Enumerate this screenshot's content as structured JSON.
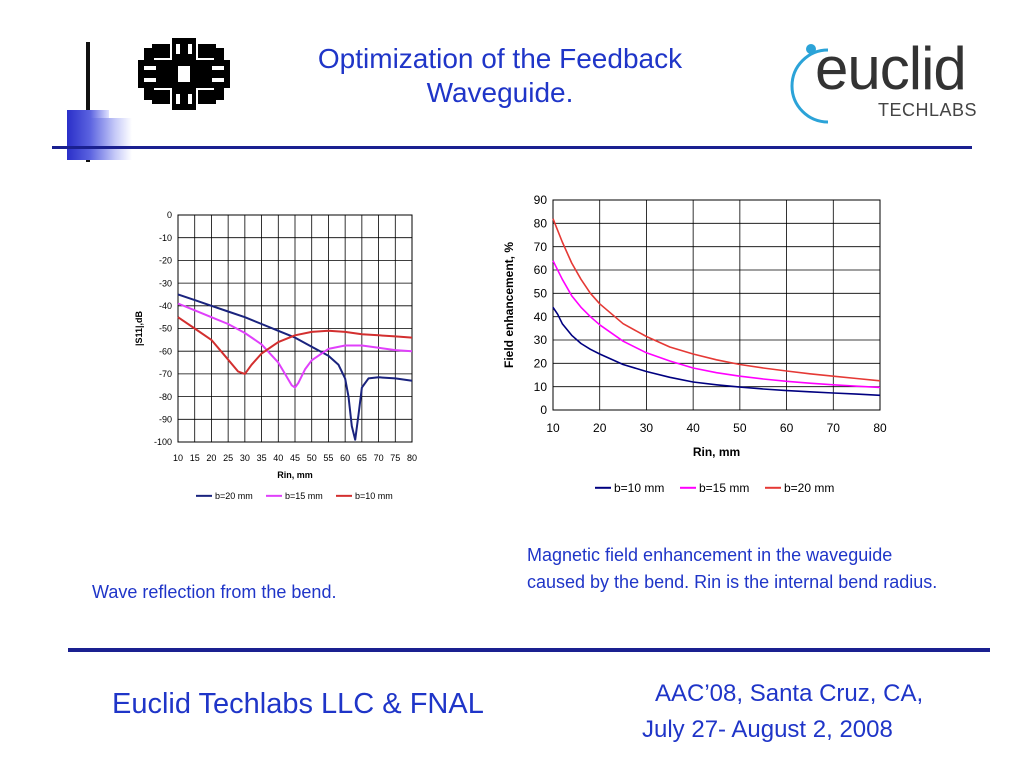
{
  "slide": {
    "title_line1": "Optimization of the Feedback",
    "title_line2": "Waveguide.",
    "logo_right_word": "euclid",
    "logo_right_sub": "TECHLABS",
    "caption_left": "Wave reflection from the bend.",
    "caption_right": "Magnetic field enhancement in the waveguide caused by the bend.  Rin is the internal bend radius.",
    "footer_left": "Euclid Techlabs LLC & FNAL",
    "footer_right_line1": "AAC’08, Santa Cruz, CA,",
    "footer_right_line2": "July 27- August 2, 2008"
  },
  "chart_data": [
    {
      "type": "line",
      "title": "",
      "xlabel": "Rin, mm",
      "ylabel": "|S11|,dB",
      "xlim": [
        10,
        80
      ],
      "ylim": [
        -100,
        0
      ],
      "xticks": [
        10,
        15,
        20,
        25,
        30,
        35,
        40,
        45,
        50,
        55,
        60,
        65,
        70,
        75,
        80
      ],
      "yticks": [
        0,
        -10,
        -20,
        -30,
        -40,
        -50,
        -60,
        -70,
        -80,
        -90,
        -100
      ],
      "grid": true,
      "legend": "bottom",
      "series": [
        {
          "name": "b=20 mm",
          "color": "#1a237e",
          "x": [
            10,
            15,
            20,
            25,
            30,
            35,
            40,
            45,
            50,
            55,
            58,
            60,
            61,
            62,
            63,
            64,
            65,
            67,
            70,
            75,
            80
          ],
          "y": [
            -35,
            -37.5,
            -40,
            -42.5,
            -45,
            -48,
            -51,
            -54,
            -58,
            -62,
            -66,
            -72,
            -80,
            -93,
            -99,
            -88,
            -76,
            -72,
            -71.5,
            -72,
            -73
          ]
        },
        {
          "name": "b=15 mm",
          "color": "#e040fb",
          "x": [
            10,
            15,
            20,
            25,
            30,
            35,
            40,
            42,
            44,
            45,
            46,
            48,
            50,
            55,
            60,
            65,
            70,
            75,
            80
          ],
          "y": [
            -39,
            -42,
            -45,
            -48,
            -52,
            -57,
            -65,
            -70,
            -75,
            -76,
            -74,
            -68,
            -64,
            -59,
            -57.5,
            -57.5,
            -58.5,
            -59.5,
            -60
          ]
        },
        {
          "name": "b=10 mm",
          "color": "#d32f2f",
          "x": [
            10,
            15,
            20,
            24,
            28,
            30,
            32,
            35,
            40,
            45,
            50,
            55,
            60,
            65,
            70,
            75,
            80
          ],
          "y": [
            -45,
            -50,
            -55,
            -62,
            -69,
            -70,
            -66,
            -61,
            -56,
            -53,
            -51.5,
            -51,
            -51.5,
            -52.5,
            -53,
            -53.5,
            -54
          ]
        }
      ]
    },
    {
      "type": "line",
      "title": "",
      "xlabel": "Rin, mm",
      "ylabel": "Field enhancement, %",
      "xlim": [
        10,
        80
      ],
      "ylim": [
        0,
        90
      ],
      "xticks": [
        10,
        20,
        30,
        40,
        50,
        60,
        70,
        80
      ],
      "yticks": [
        0,
        10,
        20,
        30,
        40,
        50,
        60,
        70,
        80,
        90
      ],
      "grid": true,
      "legend": "bottom",
      "series": [
        {
          "name": "b=10 mm",
          "color": "#000080",
          "x": [
            10,
            11,
            12,
            14,
            16,
            18,
            20,
            25,
            30,
            35,
            40,
            45,
            50,
            55,
            60,
            65,
            70,
            75,
            80
          ],
          "y": [
            44,
            41,
            37,
            32,
            28.5,
            26,
            24,
            19.5,
            16.5,
            14,
            12,
            10.8,
            9.8,
            9,
            8.3,
            7.8,
            7.3,
            6.8,
            6.3
          ]
        },
        {
          "name": "b=15 mm",
          "color": "#ff00ff",
          "x": [
            10,
            12,
            14,
            16,
            18,
            20,
            25,
            30,
            35,
            40,
            45,
            50,
            55,
            60,
            65,
            70,
            75,
            80
          ],
          "y": [
            64,
            56,
            49,
            44,
            40,
            36.5,
            29.5,
            24.5,
            21,
            18,
            16,
            14.5,
            13.3,
            12.3,
            11.5,
            10.8,
            10.2,
            9.7
          ]
        },
        {
          "name": "b=20 mm",
          "color": "#e53935",
          "x": [
            10,
            12,
            14,
            16,
            18,
            20,
            25,
            30,
            35,
            40,
            45,
            50,
            55,
            60,
            65,
            70,
            75,
            80
          ],
          "y": [
            82,
            72,
            63,
            56,
            50,
            45.5,
            37,
            31.5,
            27,
            24,
            21.5,
            19.5,
            18,
            16.7,
            15.5,
            14.5,
            13.5,
            12.5
          ]
        }
      ]
    }
  ]
}
